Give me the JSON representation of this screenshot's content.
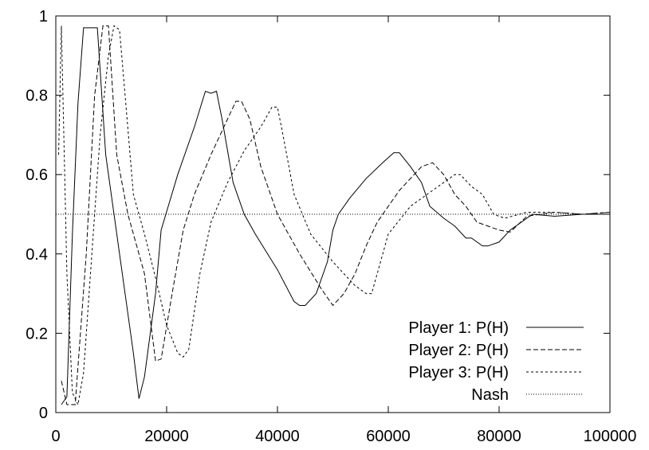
{
  "chart_data": {
    "type": "line",
    "title": "",
    "xlabel": "",
    "ylabel": "",
    "xlim": [
      0,
      100000
    ],
    "ylim": [
      0,
      1
    ],
    "xticks": [
      0,
      20000,
      40000,
      60000,
      80000,
      100000
    ],
    "xtick_labels": [
      "0",
      "20000",
      "40000",
      "60000",
      "80000",
      "100000"
    ],
    "yticks": [
      0,
      0.2,
      0.4,
      0.6,
      0.8,
      1
    ],
    "ytick_labels": [
      "0",
      "0.2",
      "0.4",
      "0.6",
      "0.8",
      "1"
    ],
    "grid": false,
    "legend_position": "bottom-right",
    "series": [
      {
        "name": "Player 1: P(H)",
        "style": "solid",
        "x": [
          1000,
          2000,
          3000,
          4000,
          5000,
          6500,
          7500,
          9000,
          12000,
          14000,
          15000,
          16000,
          18000,
          19000,
          22000,
          25000,
          27000,
          28000,
          29000,
          30000,
          32000,
          34000,
          36000,
          40000,
          43000,
          44000,
          45000,
          47000,
          49000,
          50000,
          51000,
          53000,
          56000,
          59000,
          61000,
          62000,
          64000,
          66000,
          67500,
          70000,
          72000,
          74000,
          75000,
          77000,
          78000,
          80000,
          82000,
          84000,
          86000,
          90000,
          95000,
          100000
        ],
        "y": [
          0.02,
          0.04,
          0.45,
          0.78,
          0.97,
          0.97,
          0.97,
          0.65,
          0.35,
          0.15,
          0.035,
          0.09,
          0.3,
          0.46,
          0.6,
          0.72,
          0.81,
          0.805,
          0.81,
          0.74,
          0.58,
          0.5,
          0.45,
          0.36,
          0.28,
          0.27,
          0.27,
          0.3,
          0.38,
          0.46,
          0.5,
          0.54,
          0.59,
          0.63,
          0.655,
          0.655,
          0.62,
          0.58,
          0.52,
          0.49,
          0.47,
          0.44,
          0.44,
          0.42,
          0.42,
          0.43,
          0.46,
          0.48,
          0.5,
          0.495,
          0.5,
          0.5
        ]
      },
      {
        "name": "Player 2: P(H)",
        "style": "dashed",
        "x": [
          1000,
          2000,
          3500,
          5500,
          7000,
          8500,
          9500,
          11000,
          13000,
          16000,
          18000,
          19000,
          21000,
          23000,
          25000,
          28000,
          31000,
          32500,
          33500,
          35000,
          37000,
          40000,
          44000,
          48000,
          50000,
          52000,
          54000,
          56000,
          58000,
          62000,
          66000,
          68000,
          70000,
          72000,
          74000,
          76000,
          78000,
          80000,
          82000,
          85000,
          90000,
          95000,
          100000
        ],
        "y": [
          0.08,
          0.02,
          0.02,
          0.4,
          0.8,
          0.975,
          0.975,
          0.65,
          0.5,
          0.35,
          0.13,
          0.135,
          0.3,
          0.46,
          0.55,
          0.65,
          0.74,
          0.785,
          0.785,
          0.74,
          0.62,
          0.5,
          0.4,
          0.31,
          0.27,
          0.3,
          0.35,
          0.42,
          0.48,
          0.56,
          0.62,
          0.63,
          0.6,
          0.55,
          0.52,
          0.48,
          0.47,
          0.46,
          0.455,
          0.495,
          0.505,
          0.5,
          0.505
        ]
      },
      {
        "name": "Player 3: P(H)",
        "style": "dotted",
        "x": [
          500,
          1000,
          2000,
          3000,
          4000,
          5000,
          6500,
          8000,
          9500,
          10500,
          11500,
          12500,
          14000,
          16000,
          18000,
          20000,
          22000,
          23000,
          24000,
          26000,
          28000,
          31000,
          34000,
          37000,
          39000,
          40000,
          41000,
          43000,
          46000,
          50000,
          54000,
          56000,
          57000,
          58000,
          60000,
          64000,
          68000,
          70000,
          72000,
          73000,
          75000,
          77000,
          79000,
          81000,
          85000,
          90000,
          95000,
          100000
        ],
        "y": [
          0.65,
          0.975,
          0.35,
          0.05,
          0.02,
          0.1,
          0.4,
          0.7,
          0.9,
          0.975,
          0.965,
          0.8,
          0.55,
          0.45,
          0.34,
          0.22,
          0.15,
          0.14,
          0.16,
          0.35,
          0.48,
          0.58,
          0.66,
          0.72,
          0.77,
          0.77,
          0.7,
          0.55,
          0.45,
          0.38,
          0.32,
          0.3,
          0.3,
          0.35,
          0.45,
          0.52,
          0.56,
          0.58,
          0.6,
          0.6,
          0.57,
          0.55,
          0.5,
          0.49,
          0.505,
          0.505,
          0.5,
          0.505
        ]
      },
      {
        "name": "Nash",
        "style": "fine-dotted",
        "x": [
          0,
          100000
        ],
        "y": [
          0.5,
          0.5
        ]
      }
    ]
  }
}
